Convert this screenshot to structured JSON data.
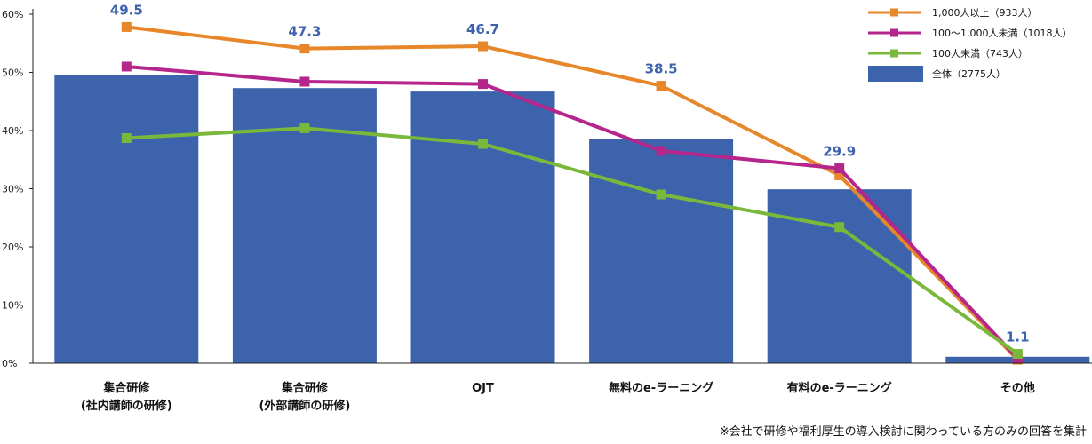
{
  "chart_data": {
    "type": "bar",
    "categories": [
      [
        "集合研修",
        "(社内講師の研修)"
      ],
      [
        "集合研修",
        "(外部講師の研修)"
      ],
      [
        "OJT"
      ],
      [
        "無料のe-ラーニング"
      ],
      [
        "有料のe-ラーニング"
      ],
      [
        "その他"
      ]
    ],
    "ylim": [
      0,
      60
    ],
    "yticks": [
      0,
      10,
      20,
      30,
      40,
      50,
      60
    ],
    "ytick_labels": [
      "0%",
      "10%",
      "20%",
      "30%",
      "40%",
      "50%",
      "60%"
    ],
    "grid": false,
    "legend_position": "top-right",
    "bars": {
      "name": "全体（2775人）",
      "color": "#3d63ad",
      "values": [
        49.5,
        47.3,
        46.7,
        38.5,
        29.9,
        1.1
      ],
      "labels": [
        "49.5",
        "47.3",
        "46.7",
        "38.5",
        "29.9",
        "1.1"
      ]
    },
    "lines": [
      {
        "name": "1,000人以上（933人）",
        "color": "#e8862a",
        "values": [
          57.8,
          54.1,
          54.5,
          47.7,
          32.3,
          0.6
        ]
      },
      {
        "name": "100〜1,000人未満（1018人）",
        "color": "#b5268d",
        "values": [
          51.0,
          48.4,
          48.0,
          36.5,
          33.5,
          0.8
        ]
      },
      {
        "name": "100人未満（743人）",
        "color": "#7ab83b",
        "values": [
          38.7,
          40.4,
          37.7,
          29.0,
          23.4,
          1.6
        ]
      }
    ],
    "note": "※会社で研修や福利厚生の導入検討に関わっている方のみの回答を集計"
  }
}
